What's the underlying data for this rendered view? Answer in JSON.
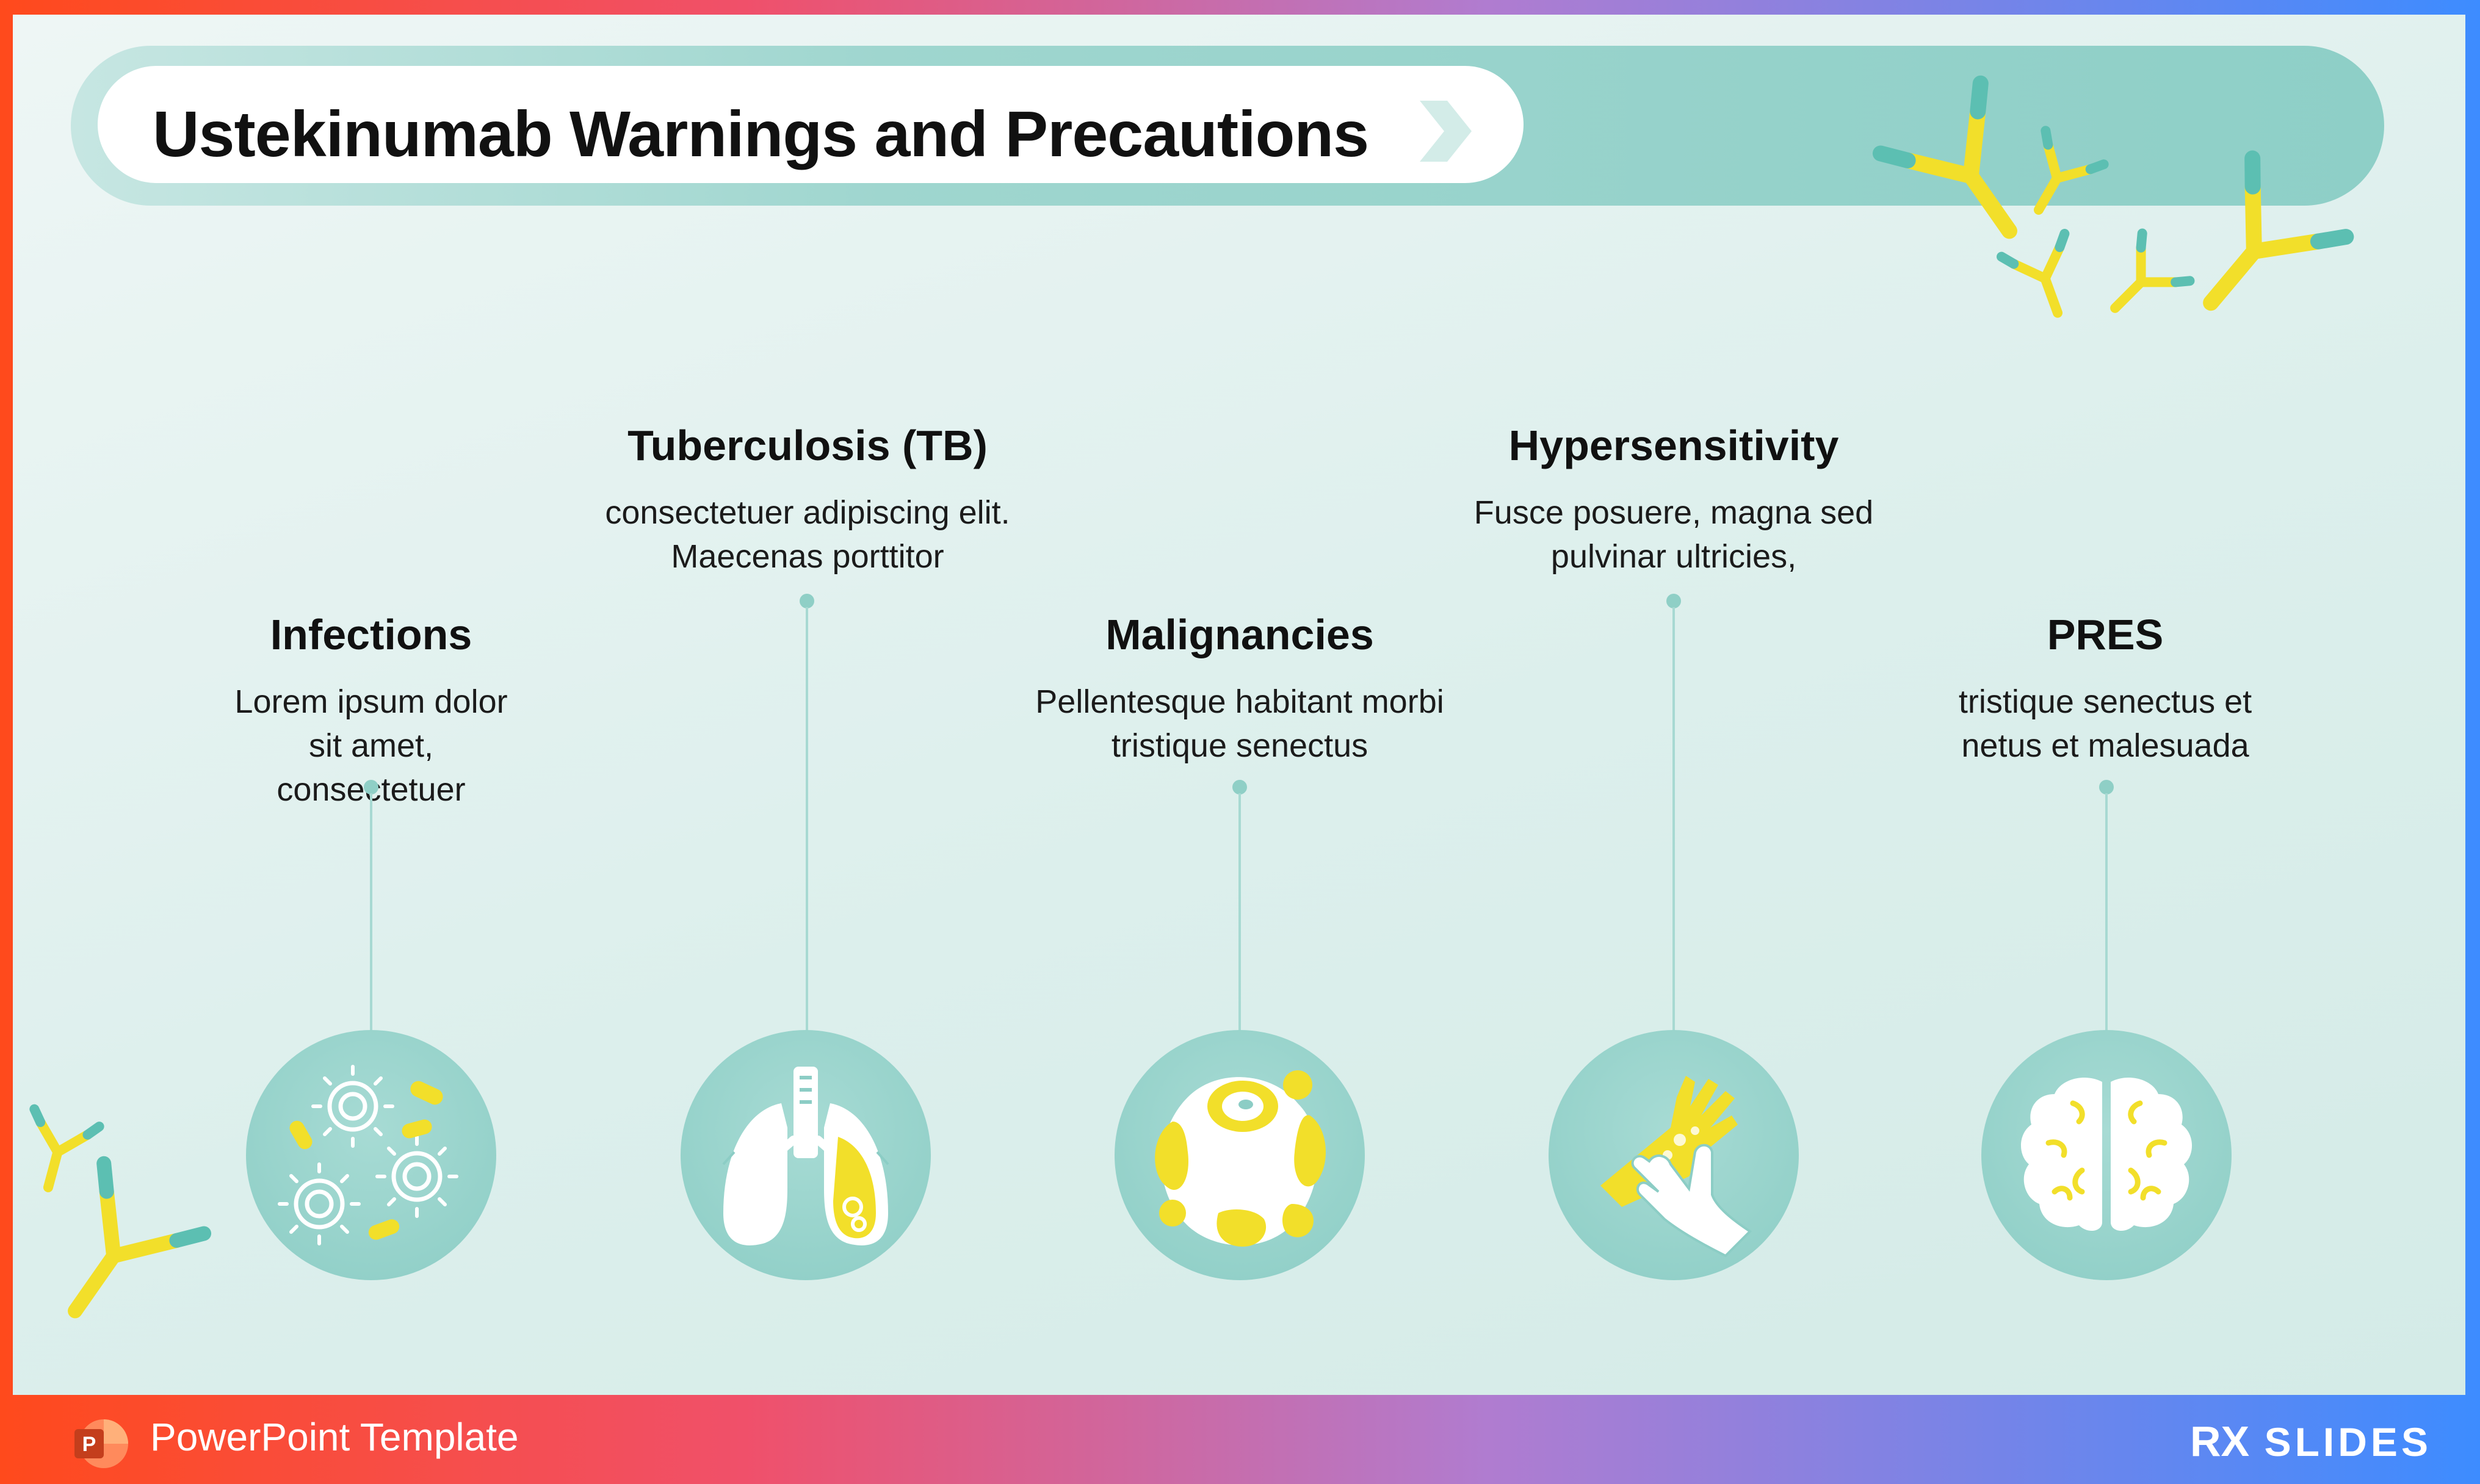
{
  "slide": {
    "title": "Ustekinumab Warnings and Precautions"
  },
  "items": [
    {
      "title": "Infections",
      "desc": "Lorem ipsum dolor sit amet, consectetuer",
      "icon": "bacteria-icon"
    },
    {
      "title": "Tuberculosis (TB)",
      "desc": "consectetuer adipiscing elit. Maecenas porttitor",
      "icon": "lungs-icon"
    },
    {
      "title": "Malignancies",
      "desc": "Pellentesque habitant morbi tristique senectus",
      "icon": "cancer-cell-icon"
    },
    {
      "title": "Hypersensitivity",
      "desc": "Fusce posuere, magna sed pulvinar ultricies,",
      "icon": "allergic-hand-icon"
    },
    {
      "title": "PRES",
      "desc": "tristique senectus et netus et malesuada",
      "icon": "brain-icon"
    }
  ],
  "footer": {
    "template_label": "PowerPoint Template",
    "brand_prefix": "RX",
    "brand_name": "SLIDES"
  },
  "colors": {
    "teal": "#5cbfb2",
    "yellow": "#f2df2a",
    "accent_gradient_start": "#ff4a1c",
    "accent_gradient_end": "#3d8cff"
  }
}
